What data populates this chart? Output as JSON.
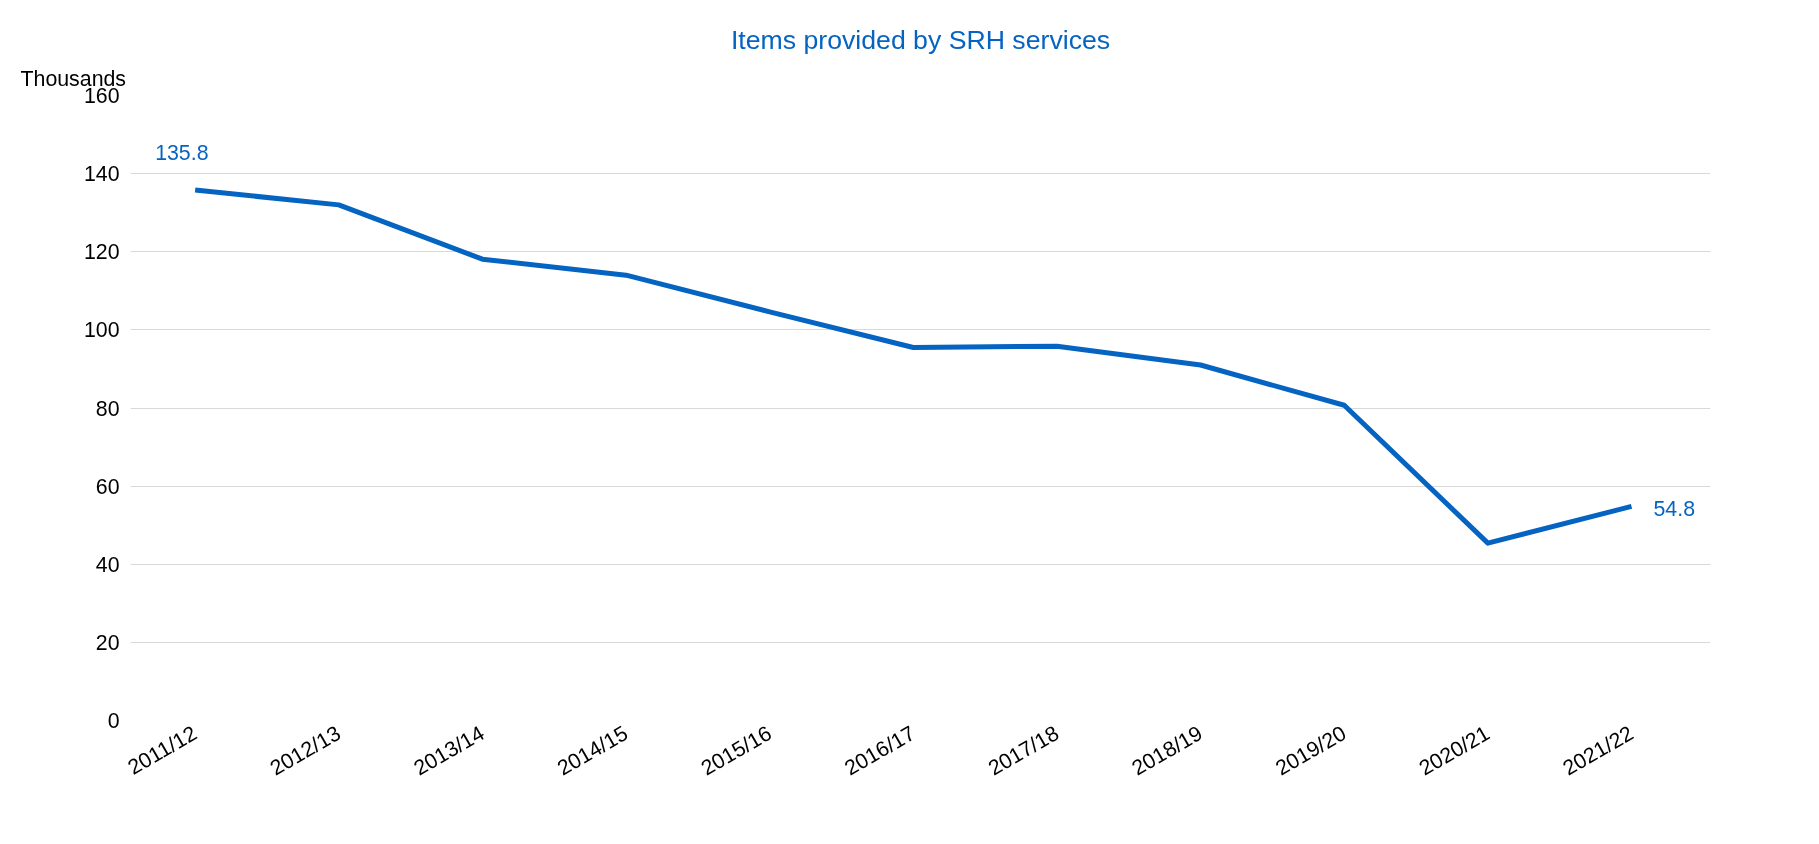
{
  "chart_data": {
    "type": "line",
    "title": "Items provided by SRH services",
    "ylabel": "Thousands",
    "categories": [
      "2011/12",
      "2012/13",
      "2013/14",
      "2014/15",
      "2015/16",
      "2016/17",
      "2017/18",
      "2018/19",
      "2019/20",
      "2020/21",
      "2021/22"
    ],
    "series": [
      {
        "color": "#0563c1",
        "values": [
          135.8,
          132.0,
          118.1,
          114.0,
          104.6,
          95.5,
          95.8,
          91.0,
          80.7,
          45.4,
          54.8
        ],
        "value_labels": [
          "135.8",
          null,
          null,
          null,
          null,
          null,
          null,
          null,
          null,
          null,
          "54.8"
        ]
      }
    ],
    "ylim": [
      0,
      160
    ],
    "yticks": [
      0,
      20,
      40,
      60,
      80,
      100,
      120,
      140,
      160
    ],
    "grid": "y",
    "marker": "none",
    "line_style": "solid"
  }
}
